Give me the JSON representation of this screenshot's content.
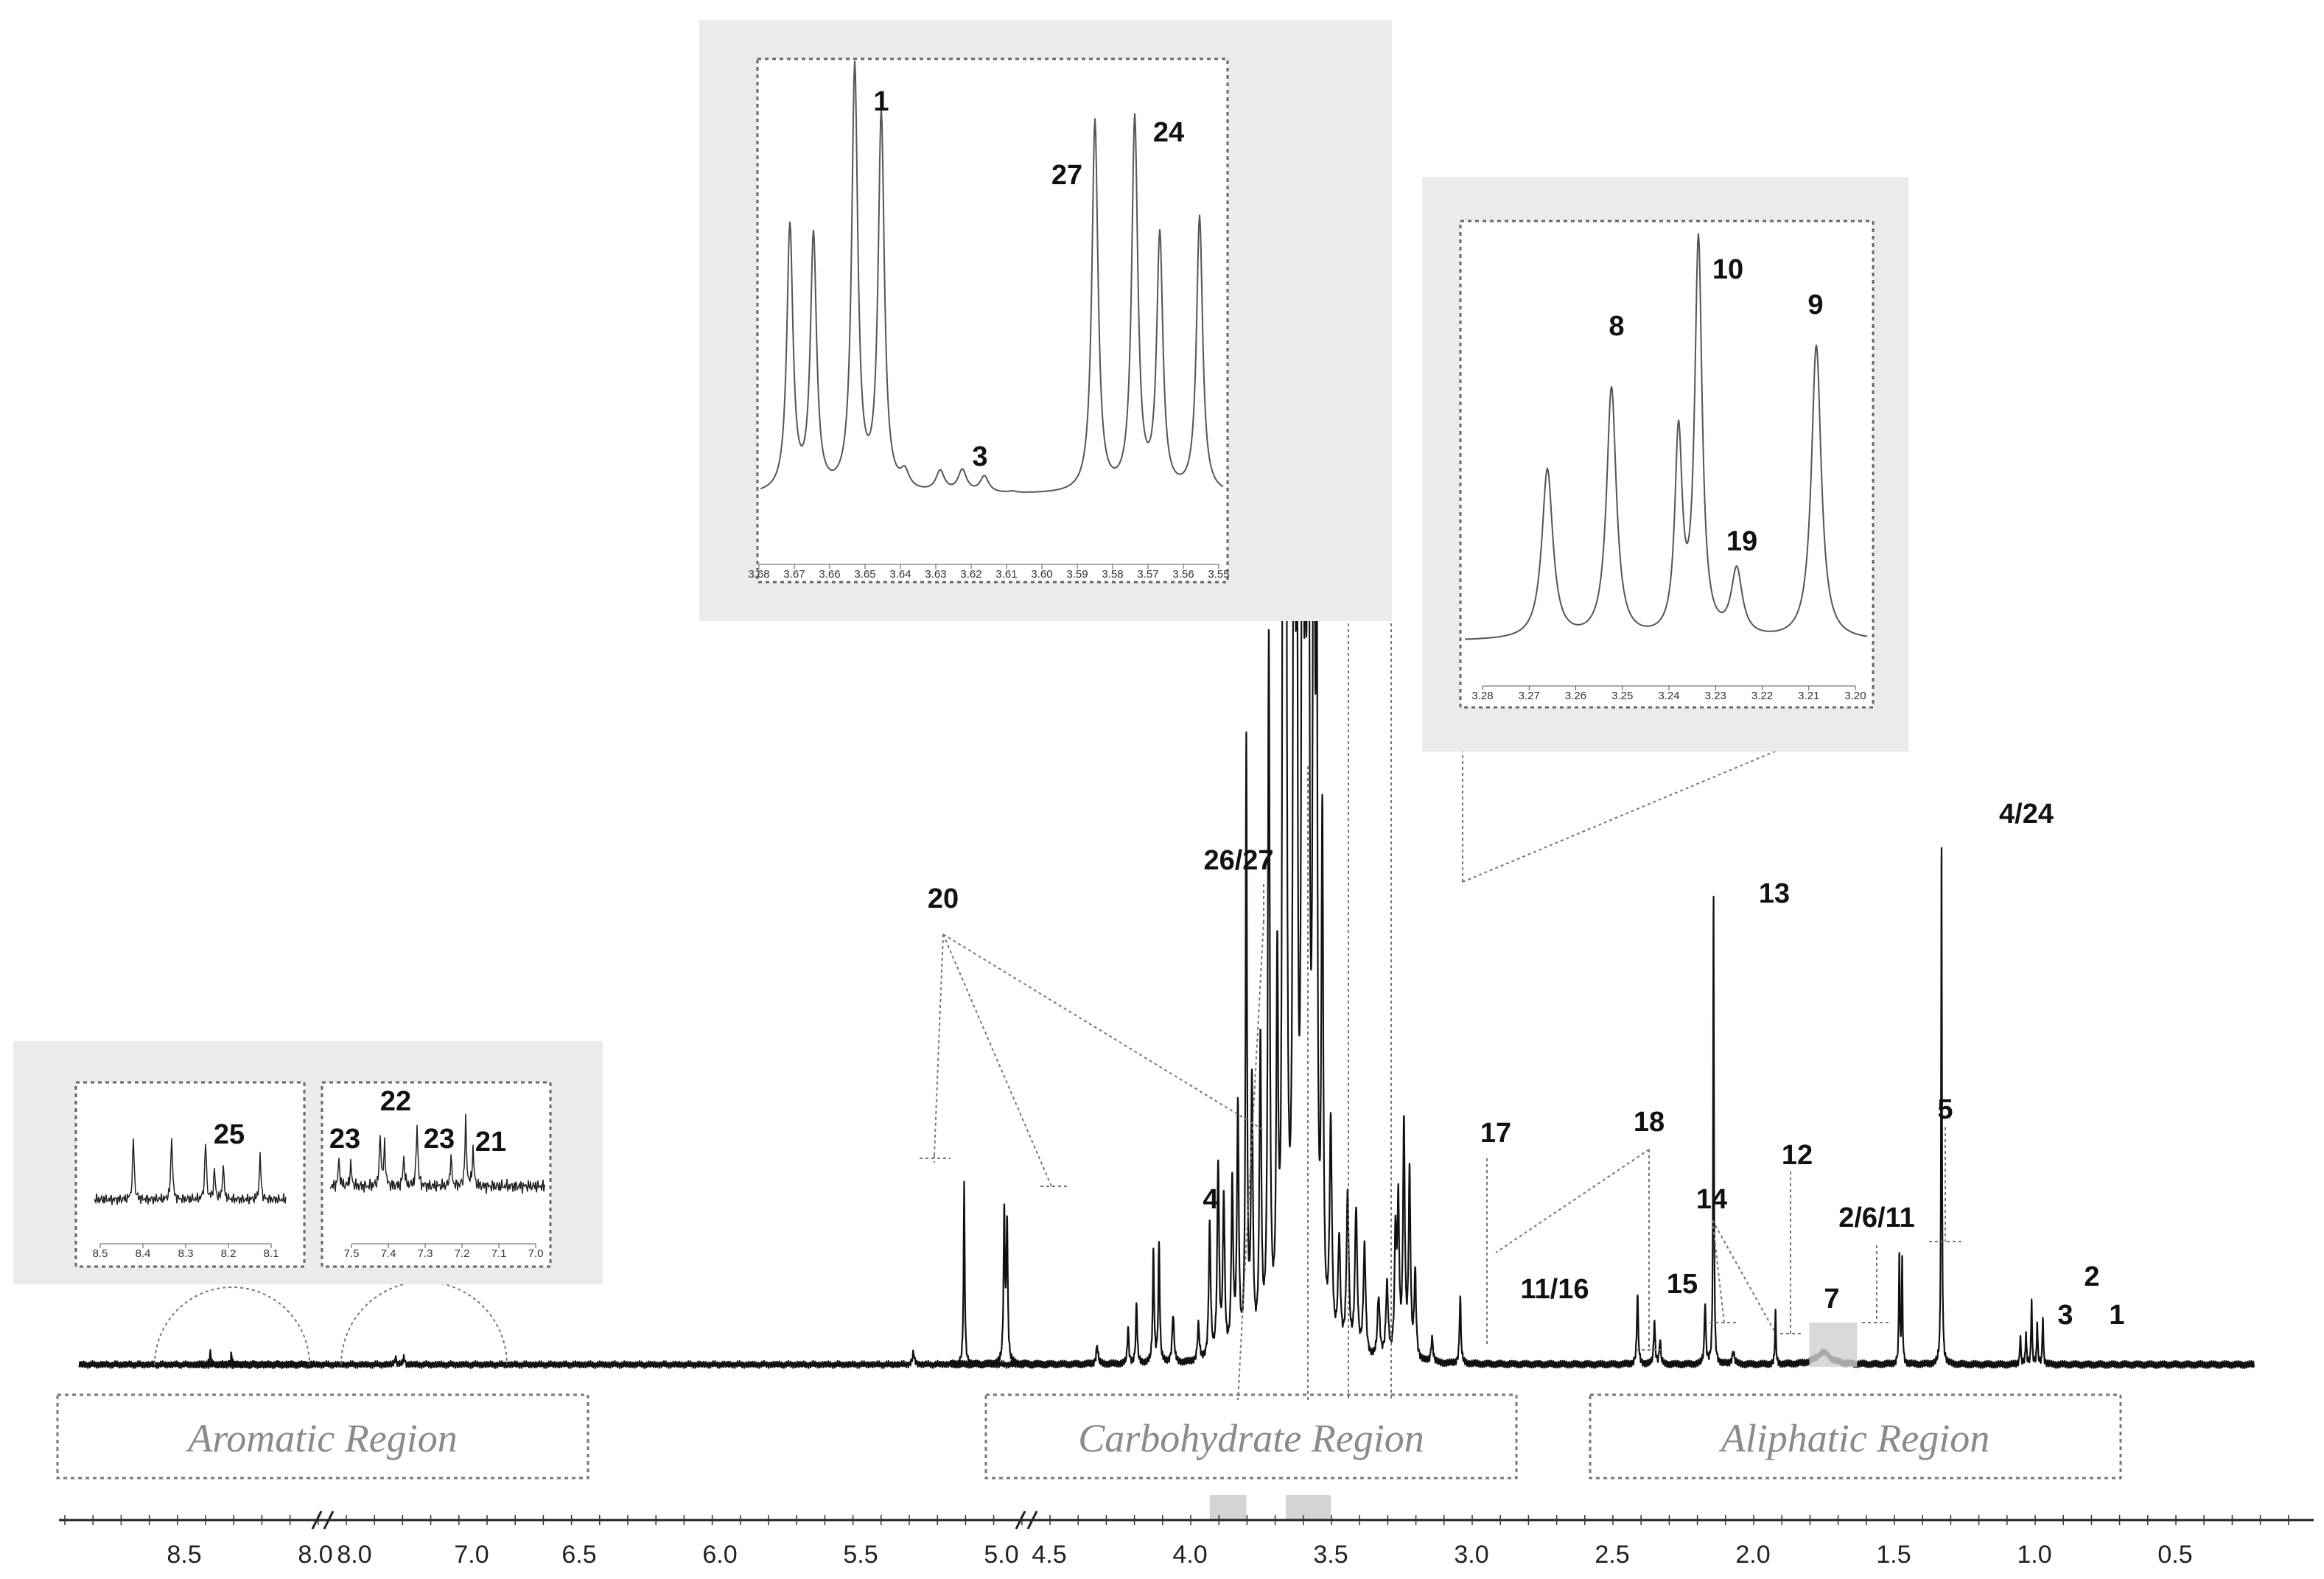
{
  "chart_data": {
    "type": "line",
    "xaxis": {
      "ticks": [
        "8.5",
        "8.0",
        "8.0",
        "7.0",
        "6.5",
        "6.0",
        "5.5",
        "5.0",
        "4.5",
        "4.0",
        "3.5",
        "3.0",
        "2.5",
        "2.0",
        "1.5",
        "1.0",
        "0.5"
      ],
      "reversed": true,
      "breaks": [
        "8.0",
        "5.0"
      ]
    },
    "regions": [
      "Aromatic Region",
      "Carbohydrate Region",
      "Aliphatic Region"
    ],
    "peaks": [
      {
        "label": "20",
        "ppm": 5.25,
        "height": 0.148
      },
      {
        "label": "20",
        "ppm": 4.65,
        "height": 0.125
      },
      {
        "label": "4",
        "ppm": 4.11,
        "height": 0.115
      },
      {
        "label": "26/27",
        "ppm": 3.8,
        "height": 0.5
      },
      {
        "label": "17",
        "ppm": 3.14,
        "height": 0.03
      },
      {
        "label": "11/16",
        "ppm": 3.04,
        "height": 0.055
      },
      {
        "label": "18",
        "ppm": 2.56,
        "height": 0.015
      },
      {
        "label": "15",
        "ppm": 2.41,
        "height": 0.058
      },
      {
        "label": "14",
        "ppm": 2.35,
        "height": 0.035
      },
      {
        "label": "12",
        "ppm": 2.05,
        "height": 0.03
      },
      {
        "label": "13",
        "ppm": 2.14,
        "height": 0.386
      },
      {
        "label": "7",
        "ppm": 1.92,
        "height": 0.045
      },
      {
        "label": "2/6/11",
        "ppm": 1.74,
        "height": 0.02
      },
      {
        "label": "5",
        "ppm": 1.48,
        "height": 0.09
      },
      {
        "label": "4/24",
        "ppm": 1.33,
        "height": 0.43
      },
      {
        "label": "3",
        "ppm": 1.04,
        "height": 0.03
      },
      {
        "label": "2",
        "ppm": 1.01,
        "height": 0.055
      },
      {
        "label": "1",
        "ppm": 0.97,
        "height": 0.04
      }
    ],
    "insets": [
      {
        "ticks": [
          "3.68",
          "3.67",
          "3.66",
          "3.65",
          "3.64",
          "3.63",
          "3.62",
          "3.61",
          "3.60",
          "3.59",
          "3.58",
          "3.57",
          "3.56",
          "3.55"
        ],
        "labels": [
          "1",
          "3",
          "27",
          "24"
        ]
      },
      {
        "ticks": [
          "3.28",
          "3.27",
          "3.26",
          "3.25",
          "3.24",
          "3.23",
          "3.22",
          "3.21",
          "3.20"
        ],
        "labels": [
          "8",
          "10",
          "9",
          "19"
        ]
      },
      {
        "ticks": [
          "8.5",
          "8.4",
          "8.3",
          "8.2",
          "8.1"
        ],
        "labels": [
          "25"
        ]
      },
      {
        "ticks": [
          "7.5",
          "7.4",
          "7.3",
          "7.2",
          "7.1",
          "7.0"
        ],
        "labels": [
          "23",
          "22",
          "23",
          "21"
        ]
      }
    ]
  }
}
